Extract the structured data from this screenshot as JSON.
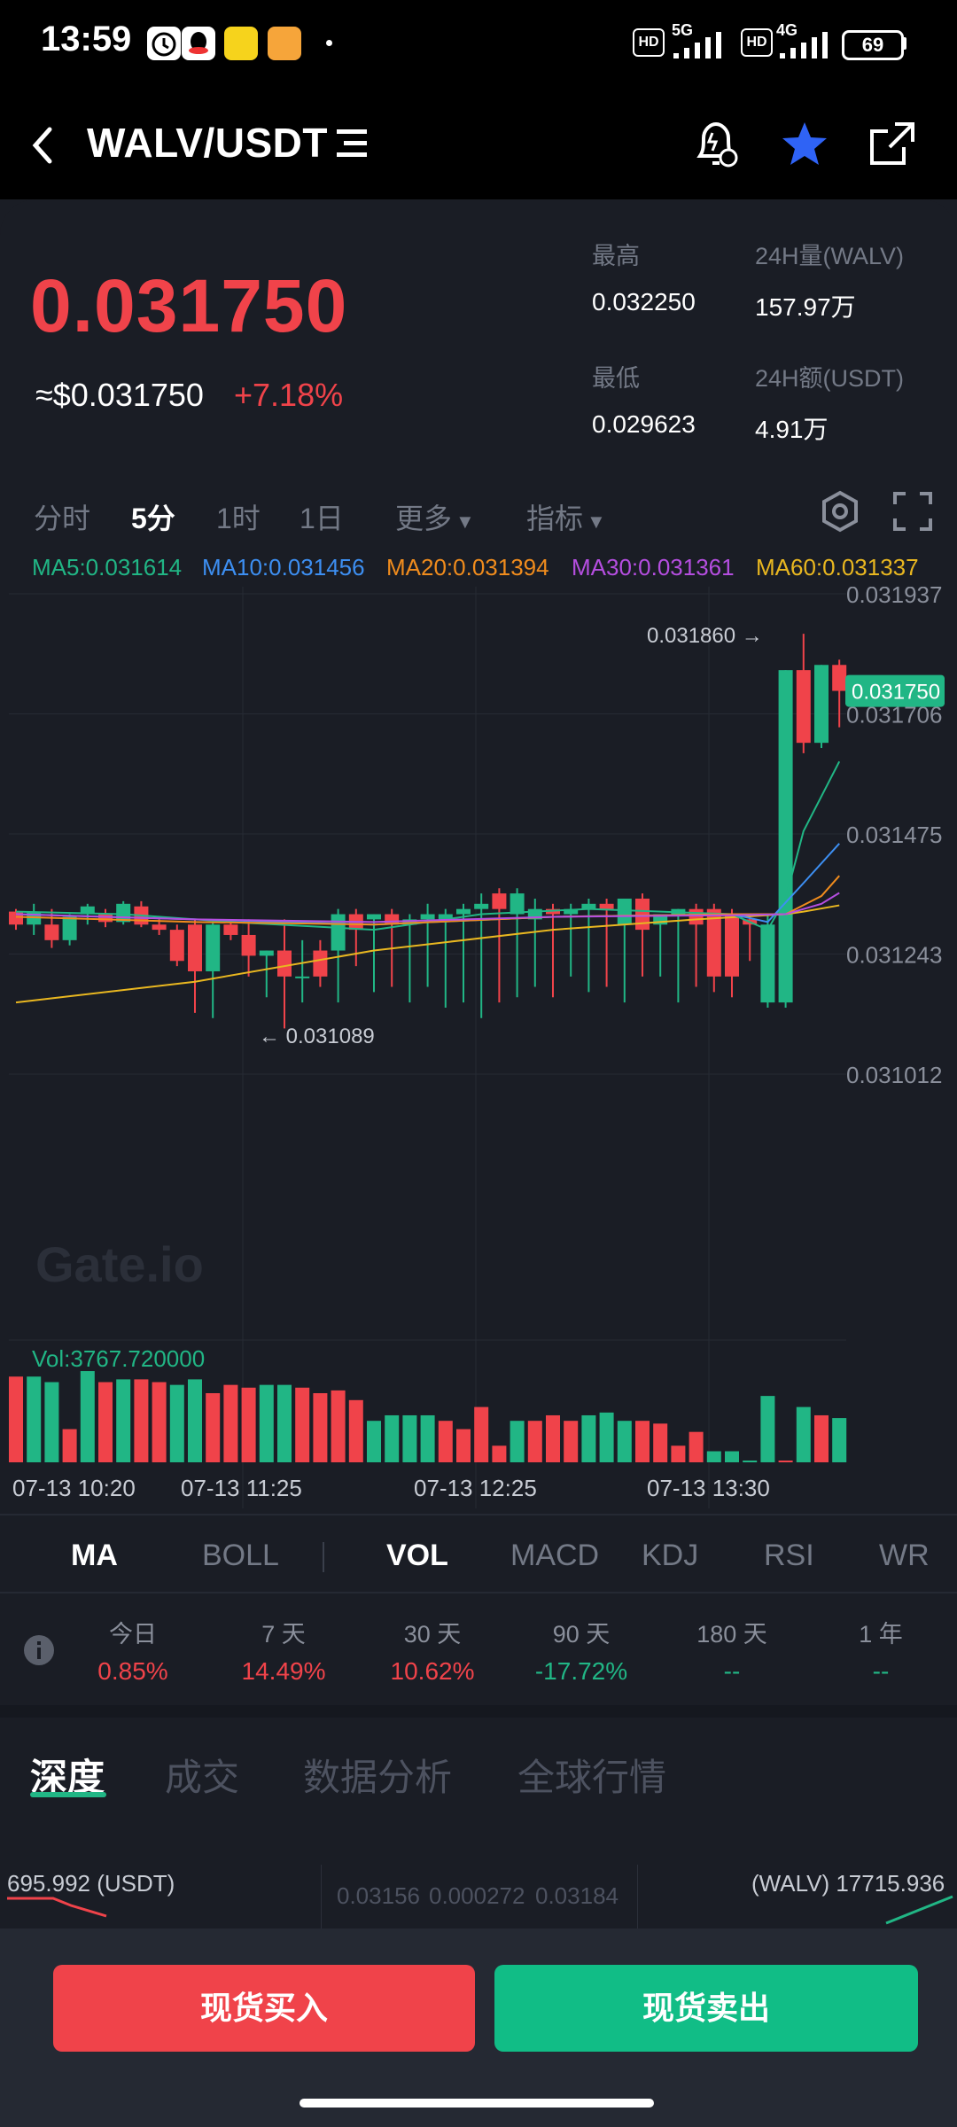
{
  "status_bar": {
    "time": "13:59",
    "net1": "5G",
    "net2": "4G",
    "battery": "69"
  },
  "header": {
    "back_icon": "chevron-left-icon",
    "pair": "WALV/USDT",
    "menu_icon": "list-icon",
    "alert_icon": "price-alert-icon",
    "favorite_icon": "star-icon",
    "share_icon": "share-icon"
  },
  "ticker": {
    "price": "0.031750",
    "usd_price": "≈$0.031750",
    "change": "+7.18%",
    "high_label": "最高",
    "high": "0.032250",
    "low_label": "最低",
    "low": "0.029623",
    "vol_label": "24H量(WALV)",
    "vol": "157.97万",
    "amt_label": "24H额(USDT)",
    "amt": "4.91万"
  },
  "timeframes": {
    "items": [
      "分时",
      "5分",
      "1时",
      "1日",
      "更多",
      "指标"
    ],
    "active": "5分"
  },
  "ma": {
    "ma5": "MA5:0.031614",
    "ma10": "MA10:0.031456",
    "ma20": "MA20:0.031394",
    "ma30": "MA30:0.031361",
    "ma60": "MA60:0.031337"
  },
  "colors": {
    "up": "#21b685",
    "down": "#f0434a",
    "ma5": "#21b685",
    "ma10": "#3d8ff2",
    "ma20": "#f08c1d",
    "ma30": "#b54ee0",
    "ma60": "#e9b720",
    "bg": "#1a1d25"
  },
  "chart_data": {
    "type": "candlestick",
    "ylim": [
      0.031012,
      0.031937
    ],
    "y_ticks": [
      "0.031937",
      "0.031706",
      "0.031475",
      "0.031243",
      "0.031012"
    ],
    "x_ticks": [
      "07-13 10:20",
      "07-13 11:25",
      "07-13 12:25",
      "07-13 13:30"
    ],
    "last_price_label": "0.031750",
    "max_label": "0.031860 →",
    "min_label": "← 0.031089",
    "watermark": "Gate.io",
    "candles": [
      [
        0.031325,
        0.03133,
        0.03129,
        0.0313
      ],
      [
        0.0313,
        0.03134,
        0.03128,
        0.031325
      ],
      [
        0.0313,
        0.03133,
        0.031255,
        0.03127
      ],
      [
        0.03127,
        0.03132,
        0.03126,
        0.031315
      ],
      [
        0.03132,
        0.03134,
        0.0313,
        0.031335
      ],
      [
        0.03132,
        0.03133,
        0.031295,
        0.031305
      ],
      [
        0.031305,
        0.031345,
        0.0313,
        0.03134
      ],
      [
        0.031335,
        0.031345,
        0.031295,
        0.0313
      ],
      [
        0.0313,
        0.03131,
        0.03128,
        0.03129
      ],
      [
        0.03129,
        0.0313,
        0.03122,
        0.03123
      ],
      [
        0.0313,
        0.03131,
        0.03113,
        0.03121
      ],
      [
        0.03121,
        0.03131,
        0.03112,
        0.0313
      ],
      [
        0.0313,
        0.03131,
        0.03127,
        0.03128
      ],
      [
        0.03128,
        0.03131,
        0.0312,
        0.03124
      ],
      [
        0.03124,
        0.03125,
        0.03116,
        0.03125
      ],
      [
        0.03125,
        0.03131,
        0.0311,
        0.0312
      ],
      [
        0.0312,
        0.03127,
        0.03115,
        0.0312
      ],
      [
        0.03125,
        0.03127,
        0.03118,
        0.0312
      ],
      [
        0.03125,
        0.03133,
        0.03115,
        0.03132
      ],
      [
        0.03132,
        0.03133,
        0.03122,
        0.03129
      ],
      [
        0.03131,
        0.03132,
        0.03117,
        0.03132
      ],
      [
        0.03132,
        0.03133,
        0.03118,
        0.0313
      ],
      [
        0.0313,
        0.03132,
        0.03115,
        0.03131
      ],
      [
        0.03131,
        0.03134,
        0.03118,
        0.03132
      ],
      [
        0.03131,
        0.03133,
        0.03114,
        0.03132
      ],
      [
        0.03132,
        0.03134,
        0.03115,
        0.03133
      ],
      [
        0.03133,
        0.03136,
        0.03112,
        0.03134
      ],
      [
        0.03136,
        0.03137,
        0.03115,
        0.03133
      ],
      [
        0.03132,
        0.03137,
        0.03116,
        0.03136
      ],
      [
        0.03131,
        0.03135,
        0.03118,
        0.03133
      ],
      [
        0.03133,
        0.03134,
        0.03116,
        0.03132
      ],
      [
        0.03132,
        0.03134,
        0.0312,
        0.03133
      ],
      [
        0.03133,
        0.03135,
        0.03117,
        0.03134
      ],
      [
        0.03134,
        0.03135,
        0.03118,
        0.03133
      ],
      [
        0.0313,
        0.03135,
        0.03115,
        0.03135
      ],
      [
        0.03135,
        0.03136,
        0.0312,
        0.03129
      ],
      [
        0.0313,
        0.03132,
        0.0312,
        0.03132
      ],
      [
        0.03132,
        0.03133,
        0.03115,
        0.03133
      ],
      [
        0.03133,
        0.03134,
        0.03118,
        0.0313
      ],
      [
        0.03133,
        0.03134,
        0.03117,
        0.0312
      ],
      [
        0.03132,
        0.03133,
        0.03116,
        0.0312
      ],
      [
        0.03131,
        0.03132,
        0.03123,
        0.0313
      ],
      [
        0.03115,
        0.03132,
        0.03114,
        0.0313
      ],
      [
        0.03115,
        0.03179,
        0.03114,
        0.03179
      ],
      [
        0.03179,
        0.03186,
        0.03163,
        0.03165
      ],
      [
        0.03165,
        0.0318,
        0.03164,
        0.0318
      ],
      [
        0.0318,
        0.03181,
        0.03168,
        0.03175
      ]
    ],
    "ma_lines": {
      "ma60": [
        [
          0,
          0.03115
        ],
        [
          10,
          0.03119
        ],
        [
          20,
          0.03125
        ],
        [
          30,
          0.03129
        ],
        [
          38,
          0.03131
        ],
        [
          43,
          0.03132
        ],
        [
          44,
          0.031325
        ],
        [
          46,
          0.031337
        ]
      ],
      "ma5": [
        [
          0,
          0.031325
        ],
        [
          6,
          0.03132
        ],
        [
          12,
          0.031305
        ],
        [
          20,
          0.03129
        ],
        [
          26,
          0.03132
        ],
        [
          32,
          0.03133
        ],
        [
          40,
          0.03132
        ],
        [
          42,
          0.03129
        ],
        [
          43,
          0.03135
        ],
        [
          44,
          0.03148
        ],
        [
          46,
          0.031614
        ]
      ],
      "ma10": [
        [
          0,
          0.03132
        ],
        [
          10,
          0.03131
        ],
        [
          20,
          0.0313
        ],
        [
          30,
          0.031315
        ],
        [
          40,
          0.03132
        ],
        [
          42,
          0.031305
        ],
        [
          44,
          0.03138
        ],
        [
          46,
          0.031456
        ]
      ],
      "ma20": [
        [
          0,
          0.031315
        ],
        [
          10,
          0.031305
        ],
        [
          20,
          0.0313
        ],
        [
          30,
          0.031315
        ],
        [
          40,
          0.03132
        ],
        [
          43,
          0.03132
        ],
        [
          45,
          0.031355
        ],
        [
          46,
          0.031394
        ]
      ],
      "ma30": [
        [
          0,
          0.03132
        ],
        [
          10,
          0.03131
        ],
        [
          20,
          0.031305
        ],
        [
          30,
          0.031315
        ],
        [
          40,
          0.031318
        ],
        [
          43,
          0.03132
        ],
        [
          45,
          0.03134
        ],
        [
          46,
          0.031361
        ]
      ]
    },
    "volumes": [
      62,
      62,
      58,
      24,
      66,
      58,
      60,
      60,
      58,
      56,
      60,
      50,
      56,
      54,
      56,
      56,
      54,
      50,
      52,
      45,
      30,
      34,
      34,
      34,
      30,
      24,
      40,
      12,
      30,
      30,
      34,
      30,
      34,
      36,
      30,
      30,
      28,
      12,
      22,
      8,
      8,
      0,
      48,
      0,
      40,
      34,
      32
    ],
    "volume_dirs": [
      0,
      1,
      1,
      0,
      1,
      0,
      1,
      0,
      0,
      1,
      1,
      0,
      0,
      0,
      1,
      1,
      0,
      0,
      0,
      0,
      1,
      1,
      1,
      1,
      0,
      0,
      0,
      0,
      1,
      0,
      0,
      0,
      1,
      1,
      1,
      0,
      0,
      0,
      0,
      1,
      1,
      1,
      1,
      0,
      1,
      0,
      1
    ],
    "vol_label": "Vol:3767.720000"
  },
  "indicator_tabs": {
    "items": [
      "MA",
      "BOLL",
      "VOL",
      "MACD",
      "KDJ",
      "RSI",
      "WR"
    ],
    "active": [
      "MA",
      "VOL"
    ]
  },
  "performance": {
    "info_icon": "info-icon",
    "items": [
      {
        "label": "今日",
        "value": "0.85%"
      },
      {
        "label": "7 天",
        "value": "14.49%"
      },
      {
        "label": "30 天",
        "value": "10.62%"
      },
      {
        "label": "90 天",
        "value": "-17.72%"
      },
      {
        "label": "180 天",
        "value": "--"
      },
      {
        "label": "1 年",
        "value": "--"
      }
    ]
  },
  "sections": {
    "items": [
      "深度",
      "成交",
      "数据分析",
      "全球行情"
    ],
    "active": "深度"
  },
  "depth": {
    "left": "695.992 (USDT)",
    "center_low": "0.03156",
    "center_mid": "0.000272",
    "center_high": "0.03184",
    "right": "(WALV) 17715.936"
  },
  "actions": {
    "buy": "现货买入",
    "sell": "现货卖出"
  }
}
